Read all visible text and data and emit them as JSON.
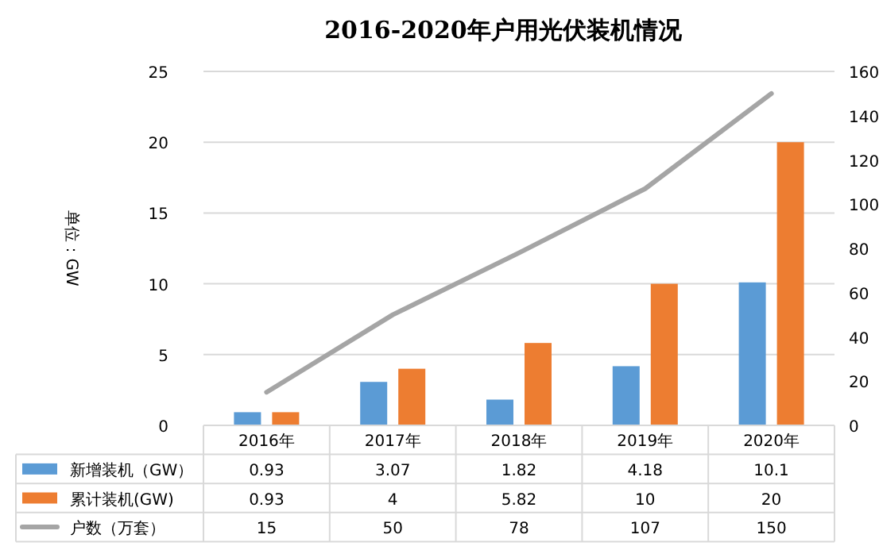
{
  "chart_data": {
    "type": "bar",
    "title": "2016-2020年户用光伏装机情况",
    "ylabel": "单位：GW",
    "categories": [
      "2016年",
      "2017年",
      "2018年",
      "2019年",
      "2020年"
    ],
    "series": [
      {
        "name": "新增装机（GW）",
        "color": "#5b9bd5",
        "values": [
          0.93,
          3.07,
          1.82,
          4.18,
          10.1
        ]
      },
      {
        "name": "累计装机(GW)",
        "color": "#ed7d31",
        "values": [
          0.93,
          4,
          5.82,
          10,
          20
        ]
      },
      {
        "name": "户数（万套）",
        "type": "line",
        "axis": "y2",
        "color": "#a5a5a5",
        "values": [
          15,
          50,
          78,
          107,
          150
        ]
      }
    ],
    "ylim": [
      0,
      25
    ],
    "yticks": [
      0,
      5,
      10,
      15,
      20,
      25
    ],
    "y2lim": [
      0,
      160
    ],
    "y2ticks": [
      0,
      20,
      40,
      60,
      80,
      100,
      120,
      140,
      160
    ],
    "grid": "y",
    "legend": "bottom",
    "data_labels": true,
    "marker": "none",
    "line_style": "solid"
  }
}
